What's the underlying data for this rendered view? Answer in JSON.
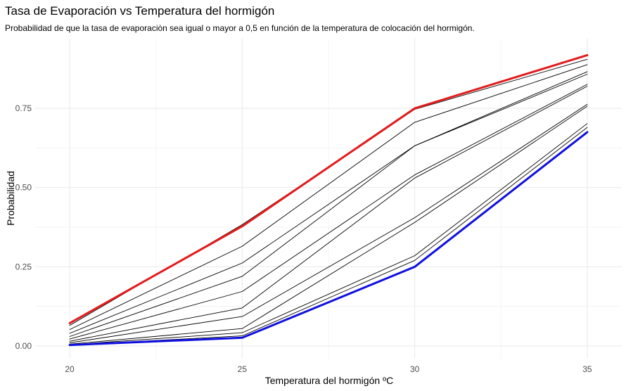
{
  "chart_data": {
    "type": "line",
    "title": "Tasa de Evaporación vs Temperatura del hormigón",
    "subtitle": "Probabilidad de que la tasa de evaporaciòn sea igual o mayor a 0,5 en función de la temperatura de colocación del hormigón.",
    "xlabel": "Temperatura del hormigón ºC",
    "ylabel": "Probabilidad",
    "x": [
      20,
      25,
      30,
      35
    ],
    "xlim": [
      19,
      36
    ],
    "ylim": [
      -0.04,
      0.97
    ],
    "xticks": [
      "20",
      "25",
      "30",
      "35"
    ],
    "yticks": [
      "0.00",
      "0.25",
      "0.50",
      "0.75"
    ],
    "grid": true,
    "series": [
      {
        "color": "#000000",
        "values": [
          0.065,
          0.383,
          0.747,
          0.905
        ]
      },
      {
        "color": "#000000",
        "values": [
          0.052,
          0.315,
          0.706,
          0.888
        ]
      },
      {
        "color": "#000000",
        "values": [
          0.04,
          0.262,
          0.632,
          0.866
        ]
      },
      {
        "color": "#000000",
        "values": [
          0.03,
          0.22,
          0.632,
          0.858
        ]
      },
      {
        "color": "#000000",
        "values": [
          0.022,
          0.172,
          0.54,
          0.826
        ]
      },
      {
        "color": "#000000",
        "values": [
          0.015,
          0.12,
          0.53,
          0.82
        ]
      },
      {
        "color": "#000000",
        "values": [
          0.01,
          0.093,
          0.405,
          0.763
        ]
      },
      {
        "color": "#000000",
        "values": [
          0.006,
          0.055,
          0.39,
          0.757
        ]
      },
      {
        "color": "#000000",
        "values": [
          0.004,
          0.042,
          0.285,
          0.702
        ]
      },
      {
        "color": "#000000",
        "values": [
          0.003,
          0.032,
          0.27,
          0.69
        ]
      },
      {
        "color": "#e31a1c",
        "values": [
          0.072,
          0.378,
          0.75,
          0.918
        ],
        "highlight": true
      },
      {
        "color": "#1010e0",
        "values": [
          0.003,
          0.026,
          0.25,
          0.675
        ],
        "highlight": true
      }
    ]
  }
}
